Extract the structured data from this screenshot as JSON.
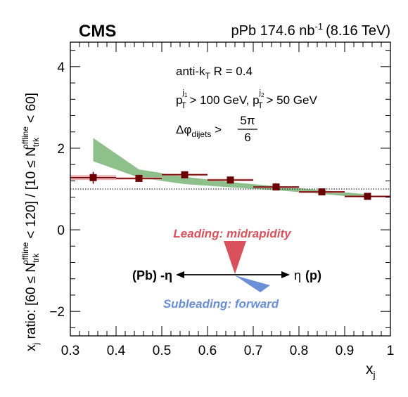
{
  "chart_data": {
    "type": "scatter",
    "experiment": "CMS",
    "header_right": {
      "system": "pPb 174.6 nb",
      "lumi_exp": "-1",
      "energy": "(8.16 TeV)"
    },
    "xlabel": {
      "main": "x",
      "sub": "j"
    },
    "ylabel": {
      "prefix": "x",
      "prefix_sub": "j",
      "ratio_word": " ratio: [60 ≤ N",
      "sup1": "offline",
      "sub1": "trk",
      "mid": " < 120] / [10 ≤ N",
      "sup2": "offline",
      "sub2": "trk",
      "end": " < 60]"
    },
    "xlim": [
      0.3,
      1.0
    ],
    "ylim": [
      -2.6,
      4.6
    ],
    "xticks": [
      {
        "v": 0.3,
        "label": "0.3"
      },
      {
        "v": 0.4,
        "label": "0.4"
      },
      {
        "v": 0.5,
        "label": "0.5"
      },
      {
        "v": 0.6,
        "label": "0.6"
      },
      {
        "v": 0.7,
        "label": "0.7"
      },
      {
        "v": 0.8,
        "label": "0.8"
      },
      {
        "v": 0.9,
        "label": "0.9"
      },
      {
        "v": 1.0,
        "label": "1"
      }
    ],
    "yticks": [
      {
        "v": -2,
        "label": "−2"
      },
      {
        "v": 0,
        "label": "0"
      },
      {
        "v": 2,
        "label": "2"
      },
      {
        "v": 4,
        "label": "4"
      }
    ],
    "reference_line_y": 1.0,
    "points": [
      {
        "x": 0.35,
        "xlo": 0.3,
        "xhi": 0.4,
        "y": 1.28,
        "ylo": 1.13,
        "yhi": 1.42,
        "syst": 0.06
      },
      {
        "x": 0.45,
        "xlo": 0.4,
        "xhi": 0.5,
        "y": 1.26,
        "ylo": 1.21,
        "yhi": 1.31,
        "syst": 0.03
      },
      {
        "x": 0.55,
        "xlo": 0.5,
        "xhi": 0.6,
        "y": 1.35,
        "ylo": 1.31,
        "yhi": 1.39,
        "syst": 0.03
      },
      {
        "x": 0.65,
        "xlo": 0.6,
        "xhi": 0.7,
        "y": 1.22,
        "ylo": 1.18,
        "yhi": 1.26,
        "syst": 0.03
      },
      {
        "x": 0.75,
        "xlo": 0.7,
        "xhi": 0.8,
        "y": 1.05,
        "ylo": 1.01,
        "yhi": 1.09,
        "syst": 0.02
      },
      {
        "x": 0.85,
        "xlo": 0.8,
        "xhi": 0.9,
        "y": 0.93,
        "ylo": 0.89,
        "yhi": 0.97,
        "syst": 0.02
      },
      {
        "x": 0.95,
        "xlo": 0.9,
        "xhi": 1.0,
        "y": 0.82,
        "ylo": 0.77,
        "yhi": 0.87,
        "syst": 0.02
      }
    ],
    "band": {
      "color": "#8dc08b",
      "upper": [
        [
          0.35,
          2.25
        ],
        [
          0.45,
          1.48
        ],
        [
          0.55,
          1.3
        ],
        [
          0.65,
          1.17
        ],
        [
          0.75,
          1.07
        ],
        [
          0.85,
          0.97
        ],
        [
          0.95,
          0.87
        ]
      ],
      "lower": [
        [
          0.35,
          1.68
        ],
        [
          0.45,
          1.28
        ],
        [
          0.55,
          1.12
        ],
        [
          0.65,
          1.04
        ],
        [
          0.75,
          0.97
        ],
        [
          0.85,
          0.88
        ],
        [
          0.95,
          0.78
        ]
      ]
    },
    "colors": {
      "points": "#6b0000",
      "syst": "#e8a0a5",
      "leading": "#d9515a",
      "subleading": "#6a8fd6"
    },
    "annotations": {
      "jet_algo_pre": "anti-k",
      "jet_algo_sub": "T",
      "jet_algo_post": " R = 0.4",
      "pt1": "p",
      "pt1_sup": "j",
      "pt1_supsub": "1",
      "pt1_sub": "T",
      "pt1_cut": " > 100 GeV, p",
      "pt2_sup": "j",
      "pt2_supsub": "2",
      "pt2_sub": "T",
      "pt2_cut": " > 50 GeV",
      "dphi": "Δφ",
      "dphi_sub": "dijets",
      "dphi_gt": " >",
      "dphi_num": "5π",
      "dphi_den": "6",
      "leading": "Leading: midrapidity",
      "subleading": "Subleading: forward",
      "left_dir": "(Pb) -η",
      "right_dir_eta": "η",
      "right_dir_p": "(p)"
    }
  }
}
